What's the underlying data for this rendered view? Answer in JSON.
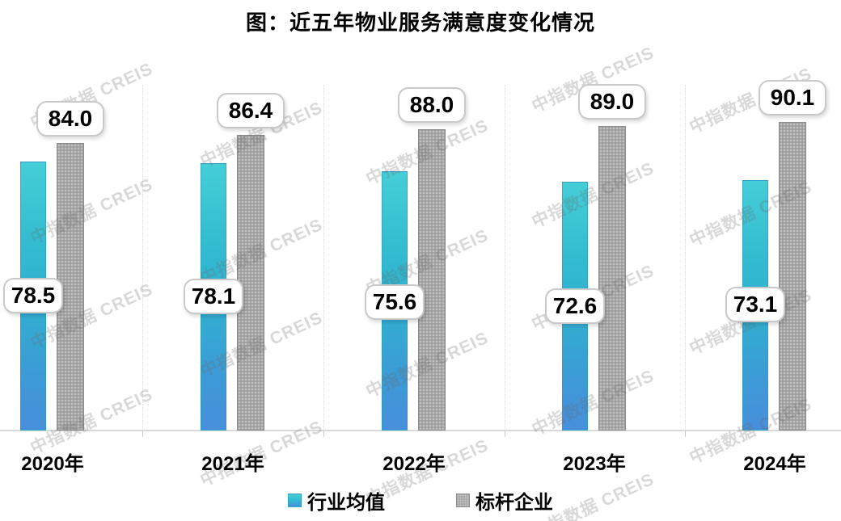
{
  "title": "图：近五年物业服务满意度变化情况",
  "watermark": {
    "text": "中指数据 CREIS"
  },
  "legend": {
    "items": [
      {
        "label": "行业均值",
        "key": "industry"
      },
      {
        "label": "标杆企业",
        "key": "benchmark"
      }
    ]
  },
  "colors": {
    "industry_top": "#45ced7",
    "industry_mid": "#31aed0",
    "industry_bottom": "#478fdc",
    "benchmark_fill": "#a7a7a7",
    "benchmark_border": "#8b8b8b",
    "label_box_border": "#c9c9c9",
    "axis_line": "#d9d9d9",
    "watermark_gray": "#d2d2d2",
    "text": "#000000"
  },
  "chart_data": {
    "type": "bar",
    "title": "图：近五年物业服务满意度变化情况",
    "categories": [
      "2020年",
      "2021年",
      "2022年",
      "2023年",
      "2024年"
    ],
    "series": [
      {
        "name": "行业均值",
        "values": [
          78.5,
          78.1,
          75.6,
          72.6,
          73.1
        ]
      },
      {
        "name": "标杆企业",
        "values": [
          84.0,
          86.4,
          88.0,
          89.0,
          90.1
        ]
      }
    ],
    "value_labels": {
      "行业均值": [
        "78.5",
        "78.1",
        "75.6",
        "72.6",
        "73.1"
      ],
      "标杆企业": [
        "84.0",
        "86.4",
        "88.0",
        "89.0",
        "90.1"
      ]
    },
    "ylim": [
      0,
      95
    ],
    "baseline": 0,
    "grid": "vertical dotted category separators",
    "legend_position": "bottom",
    "xlabel": "",
    "ylabel": ""
  }
}
